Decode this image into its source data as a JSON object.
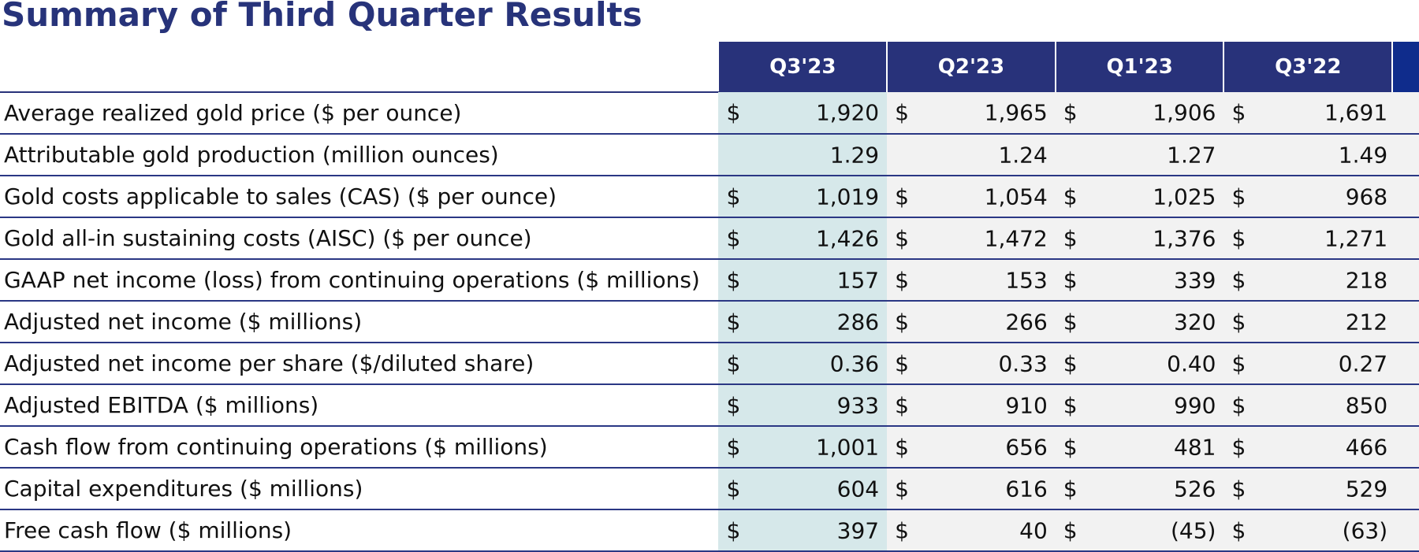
{
  "title": "Summary of Third Quarter Results",
  "columns": [
    "Q3'23",
    "Q2'23",
    "Q1'23",
    "Q3'22"
  ],
  "colors": {
    "header": "#28327a",
    "title": "#27337a",
    "current_col": "#d6e8ea",
    "other_cols": "#f2f2f2"
  },
  "rows": [
    {
      "label": "Average realized gold price ($ per ounce)",
      "cells": [
        {
          "sym": "$",
          "val": "1,920"
        },
        {
          "sym": "$",
          "val": "1,965"
        },
        {
          "sym": "$",
          "val": "1,906"
        },
        {
          "sym": "$",
          "val": "1,691"
        }
      ]
    },
    {
      "label": "Attributable gold production (million ounces)",
      "cells": [
        {
          "sym": "",
          "val": "1.29"
        },
        {
          "sym": "",
          "val": "1.24"
        },
        {
          "sym": "",
          "val": "1.27"
        },
        {
          "sym": "",
          "val": "1.49"
        }
      ]
    },
    {
      "label": "Gold costs applicable to sales (CAS) ($ per ounce)",
      "cells": [
        {
          "sym": "$",
          "val": "1,019"
        },
        {
          "sym": "$",
          "val": "1,054"
        },
        {
          "sym": "$",
          "val": "1,025"
        },
        {
          "sym": "$",
          "val": "968"
        }
      ]
    },
    {
      "label": "Gold all-in sustaining costs (AISC) ($ per ounce)",
      "cells": [
        {
          "sym": "$",
          "val": "1,426"
        },
        {
          "sym": "$",
          "val": "1,472"
        },
        {
          "sym": "$",
          "val": "1,376"
        },
        {
          "sym": "$",
          "val": "1,271"
        }
      ]
    },
    {
      "label": "GAAP net income (loss) from continuing operations ($ millions)",
      "cells": [
        {
          "sym": "$",
          "val": "157"
        },
        {
          "sym": "$",
          "val": "153"
        },
        {
          "sym": "$",
          "val": "339"
        },
        {
          "sym": "$",
          "val": "218"
        }
      ]
    },
    {
      "label": "Adjusted net income ($ millions)",
      "cells": [
        {
          "sym": "$",
          "val": "286"
        },
        {
          "sym": "$",
          "val": "266"
        },
        {
          "sym": "$",
          "val": "320"
        },
        {
          "sym": "$",
          "val": "212"
        }
      ]
    },
    {
      "label": "Adjusted net income per share ($/diluted share)",
      "cells": [
        {
          "sym": "$",
          "val": "0.36"
        },
        {
          "sym": "$",
          "val": "0.33"
        },
        {
          "sym": "$",
          "val": "0.40"
        },
        {
          "sym": "$",
          "val": "0.27"
        }
      ]
    },
    {
      "label": "Adjusted EBITDA ($ millions)",
      "cells": [
        {
          "sym": "$",
          "val": "933"
        },
        {
          "sym": "$",
          "val": "910"
        },
        {
          "sym": "$",
          "val": "990"
        },
        {
          "sym": "$",
          "val": "850"
        }
      ]
    },
    {
      "label": "Cash flow from continuing operations ($ millions)",
      "cells": [
        {
          "sym": "$",
          "val": "1,001"
        },
        {
          "sym": "$",
          "val": "656"
        },
        {
          "sym": "$",
          "val": "481"
        },
        {
          "sym": "$",
          "val": "466"
        }
      ]
    },
    {
      "label": "Capital expenditures ($ millions)",
      "cells": [
        {
          "sym": "$",
          "val": "604"
        },
        {
          "sym": "$",
          "val": "616"
        },
        {
          "sym": "$",
          "val": "526"
        },
        {
          "sym": "$",
          "val": "529"
        }
      ]
    },
    {
      "label": "Free cash flow ($ millions)",
      "cells": [
        {
          "sym": "$",
          "val": "397"
        },
        {
          "sym": "$",
          "val": "40"
        },
        {
          "sym": "$",
          "val": "(45)"
        },
        {
          "sym": "$",
          "val": "(63)"
        }
      ]
    }
  ]
}
